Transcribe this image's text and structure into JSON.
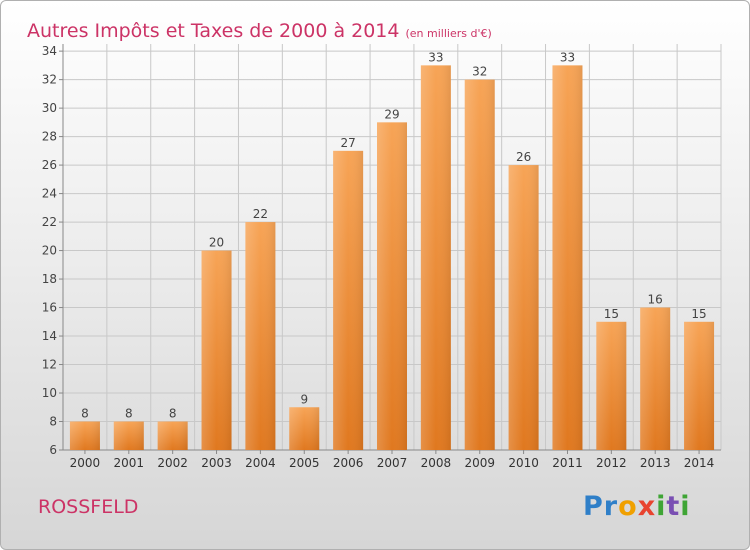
{
  "header": {
    "title": "Autres Impôts et Taxes de 2000 à 2014",
    "unit_note": "(en milliers d'€)"
  },
  "footer": {
    "commune": "ROSSFELD",
    "logo_text": "Proxiti"
  },
  "colors": {
    "title": "#cc3366",
    "bar_top": "#f7a456",
    "bar_bottom": "#e0781f",
    "grid": "#c8c8c8"
  },
  "chart_data": {
    "type": "bar",
    "categories": [
      "2000",
      "2001",
      "2002",
      "2003",
      "2004",
      "2005",
      "2006",
      "2007",
      "2008",
      "2009",
      "2010",
      "2011",
      "2012",
      "2013",
      "2014"
    ],
    "values": [
      8,
      8,
      8,
      20,
      22,
      9,
      27,
      29,
      33,
      32,
      26,
      33,
      15,
      16,
      15
    ],
    "data_labels": [
      "8",
      "8",
      "8",
      "20",
      "22",
      "9",
      "27",
      "29",
      "33",
      "32",
      "26",
      "33",
      "15",
      "16",
      "15"
    ],
    "yticks": [
      "6",
      "8",
      "10",
      "12",
      "14",
      "16",
      "18",
      "20",
      "22",
      "24",
      "26",
      "28",
      "30",
      "32",
      "34"
    ],
    "ylim": [
      6,
      34.5
    ],
    "grid": true,
    "legend": "none"
  }
}
